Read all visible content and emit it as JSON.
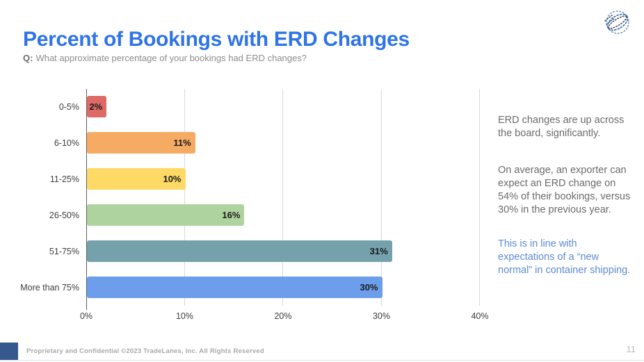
{
  "header": {
    "title": "Percent of Bookings with ERD Changes",
    "question_label": "Q:",
    "question_text": "What approximate percentage of your bookings had ERD changes?"
  },
  "chart_data": {
    "type": "bar",
    "orientation": "horizontal",
    "title": "",
    "categories": [
      "0-5%",
      "6-10%",
      "11-25%",
      "26-50%",
      "51-75%",
      "More than 75%"
    ],
    "values": [
      2,
      11,
      10,
      16,
      31,
      30
    ],
    "value_labels": [
      "2%",
      "11%",
      "10%",
      "16%",
      "31%",
      "30%"
    ],
    "bar_colors": [
      "#dd6a66",
      "#f5ab63",
      "#fed966",
      "#afd39e",
      "#74a1ac",
      "#6d9eeb"
    ],
    "x_ticks": [
      "0%",
      "10%",
      "20%",
      "30%",
      "40%"
    ],
    "xlim": [
      0,
      40
    ],
    "grid": true,
    "legend_position": "none"
  },
  "notes": {
    "note1": "ERD changes are up across the board, significantly.",
    "note2": "On average, an exporter can expect an ERD change on 54% of their bookings, versus 30% in the previous year.",
    "note3": "This is in line with expectations of a “new normal” in container shipping."
  },
  "footer": {
    "text": "Proprietary and Confidential ©2023 TradeLanes, Inc. All Rights Reserved",
    "page_number": "11"
  },
  "colors": {
    "title_blue": "#2e74e8",
    "note_gray": "#6b6b6b",
    "note_blue": "#5b8bd0",
    "footer_square_blue": "#35598e"
  },
  "icons": {
    "logo": "tradelanes-globe-logo"
  }
}
